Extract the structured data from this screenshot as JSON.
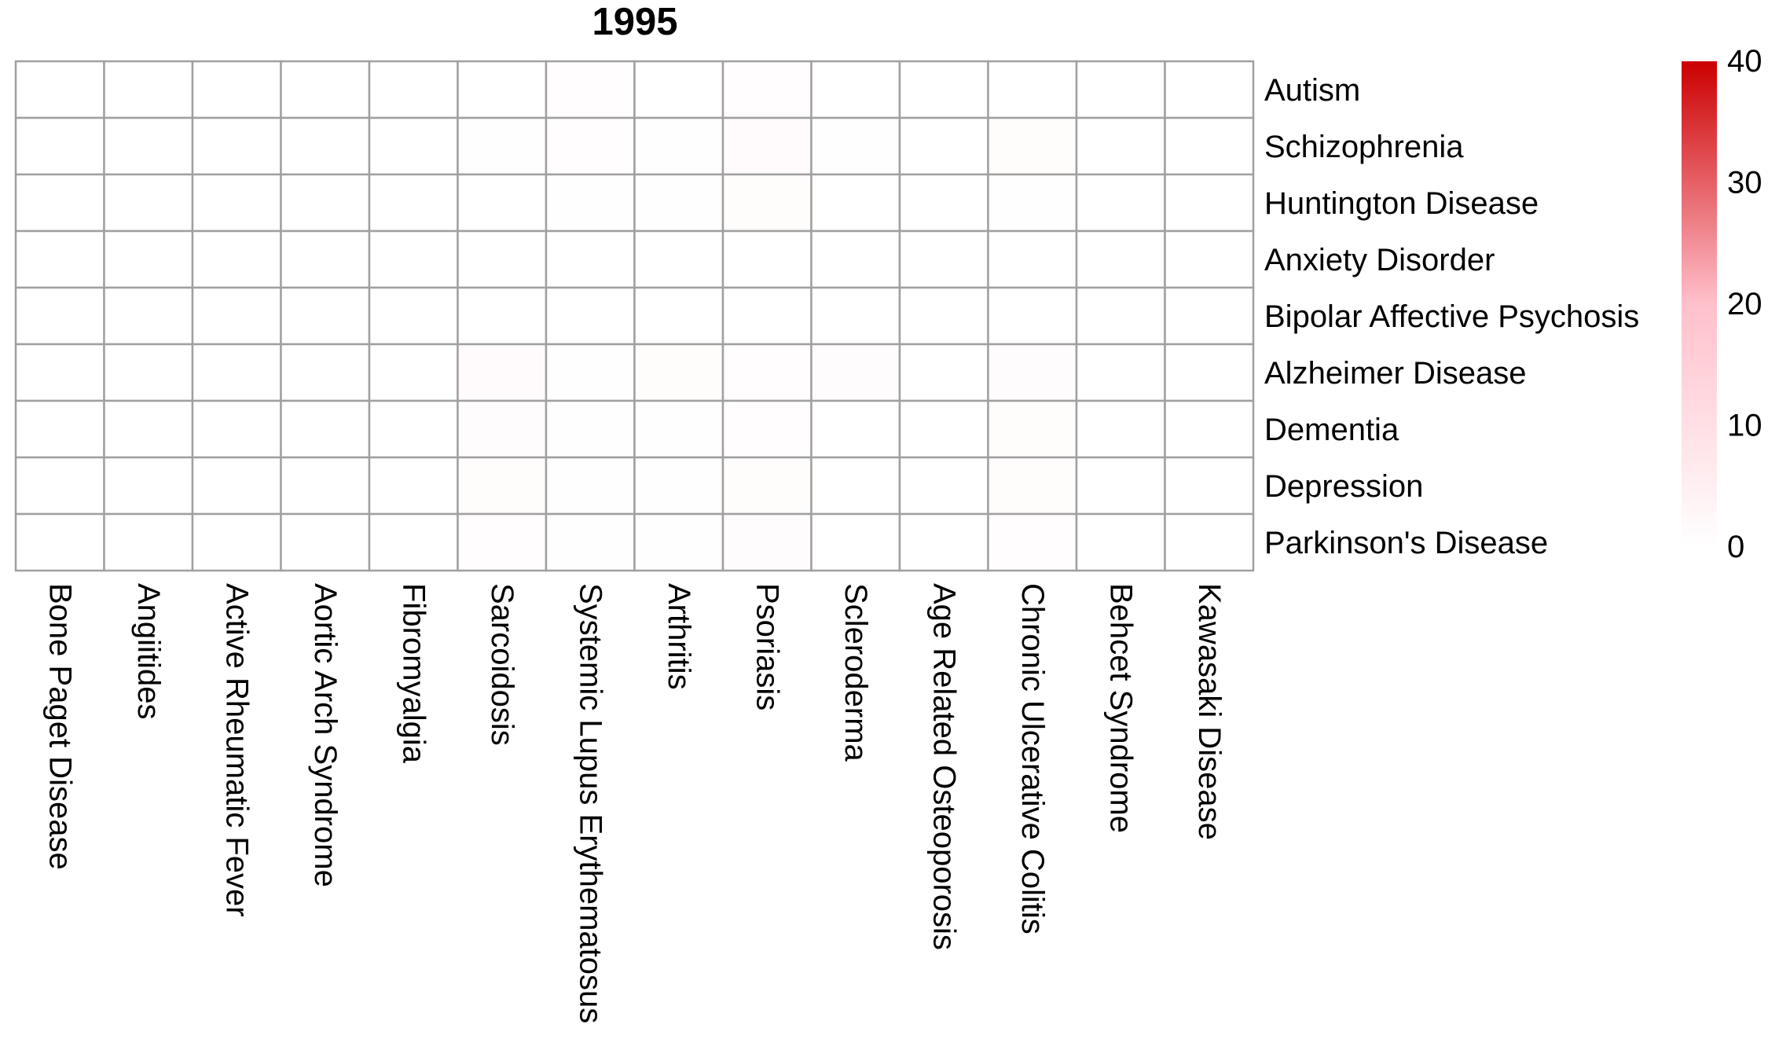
{
  "chart_data": {
    "type": "heatmap",
    "title": "1995",
    "rows": [
      "Autism",
      "Schizophrenia",
      "Huntington Disease",
      "Anxiety Disorder",
      "Bipolar Affective Psychosis",
      "Alzheimer Disease",
      "Dementia",
      "Depression",
      "Parkinson's Disease"
    ],
    "columns": [
      "Bone Paget Disease",
      "Angiitides",
      "Active Rheumatic Fever",
      "Aortic Arch Syndrome",
      "Fibromyalgia",
      "Sarcoidosis",
      "Systemic Lupus Erythematosus",
      "Arthritis",
      "Psoriasis",
      "Scleroderma",
      "Age Related Osteoporosis",
      "Chronic Ulcerative Colitis",
      "Behcet Syndrome",
      "Kawasaki Disease"
    ],
    "values": [
      [
        0,
        0,
        0,
        0,
        0,
        0,
        0.5,
        0,
        0.5,
        0,
        0,
        0,
        0,
        0
      ],
      [
        0,
        0,
        0,
        0,
        0,
        0.3,
        0.5,
        0.4,
        1.2,
        0.4,
        0,
        1.0,
        0,
        0
      ],
      [
        0,
        0,
        0,
        0,
        0,
        0,
        0.4,
        0.3,
        1.0,
        0,
        0,
        0.3,
        0,
        0
      ],
      [
        0,
        0,
        0,
        0,
        0,
        0,
        0,
        0,
        0,
        0,
        0,
        0,
        0,
        0
      ],
      [
        0,
        0,
        0,
        0,
        0,
        0,
        0,
        0,
        0,
        0,
        0,
        0,
        0,
        0
      ],
      [
        0,
        0,
        0,
        0,
        0,
        1.2,
        0.3,
        1.0,
        0.7,
        0.8,
        0,
        0.8,
        0,
        0
      ],
      [
        0,
        0,
        0,
        0,
        0,
        0.8,
        0.4,
        0.3,
        0.7,
        0,
        0,
        1.0,
        0,
        0
      ],
      [
        0,
        0,
        0,
        0,
        0,
        1.0,
        0.4,
        0.3,
        1.0,
        0,
        0,
        1.0,
        0,
        0
      ],
      [
        0,
        0,
        0,
        0,
        0,
        0.5,
        0.3,
        0.3,
        0.8,
        0,
        0,
        0.5,
        0,
        0
      ]
    ],
    "colorscale": [
      "#ffffff",
      "#ffc0cb",
      "#cc0000"
    ],
    "range": [
      0,
      40
    ],
    "legend_ticks": [
      0,
      10,
      20,
      30,
      40
    ],
    "legend_position": "right",
    "grid_color": "#a0a0a0"
  }
}
